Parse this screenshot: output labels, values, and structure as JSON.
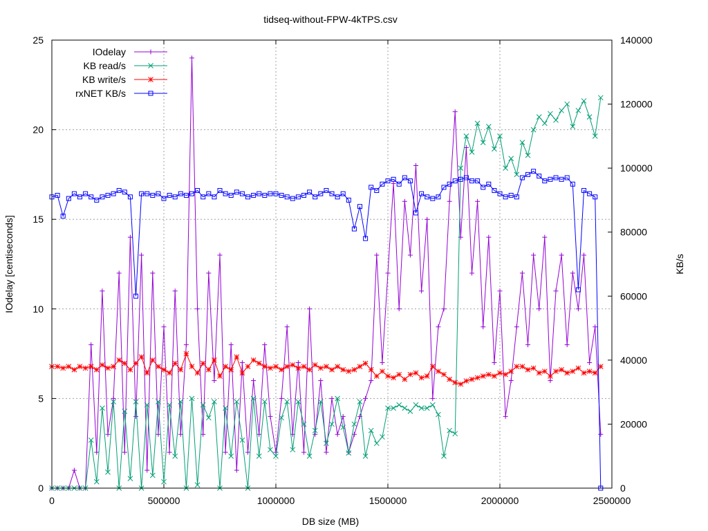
{
  "chart_data": {
    "type": "line",
    "title": "tidseq-without-FPW-4kTPS.csv",
    "xlabel": "DB size (MB)",
    "ylabel": "IOdelay [centiseconds]",
    "y2label": "KB/s",
    "xlim": [
      0,
      2500000
    ],
    "ylim": [
      0,
      25
    ],
    "y2lim": [
      0,
      140000
    ],
    "xticks": [
      "0",
      "500000",
      "1000000",
      "1500000",
      "2000000",
      "2500000"
    ],
    "yticks": [
      "0",
      "5",
      "10",
      "15",
      "20",
      "25"
    ],
    "y2ticks": [
      "0",
      "20000",
      "40000",
      "60000",
      "80000",
      "100000",
      "120000",
      "140000"
    ],
    "grid": true,
    "legend_position": "top-left",
    "x": [
      0,
      25000,
      50000,
      75000,
      100000,
      125000,
      150000,
      175000,
      200000,
      225000,
      250000,
      275000,
      300000,
      325000,
      350000,
      375000,
      400000,
      425000,
      450000,
      475000,
      500000,
      525000,
      550000,
      575000,
      600000,
      625000,
      650000,
      675000,
      700000,
      725000,
      750000,
      775000,
      800000,
      825000,
      850000,
      875000,
      900000,
      925000,
      950000,
      975000,
      1000000,
      1025000,
      1050000,
      1075000,
      1100000,
      1125000,
      1150000,
      1175000,
      1200000,
      1225000,
      1250000,
      1275000,
      1300000,
      1325000,
      1350000,
      1375000,
      1400000,
      1425000,
      1450000,
      1475000,
      1500000,
      1525000,
      1550000,
      1575000,
      1600000,
      1625000,
      1650000,
      1675000,
      1700000,
      1725000,
      1750000,
      1775000,
      1800000,
      1825000,
      1850000,
      1875000,
      1900000,
      1925000,
      1950000,
      1975000,
      2000000,
      2025000,
      2050000,
      2075000,
      2100000,
      2125000,
      2150000,
      2175000,
      2200000,
      2225000,
      2250000,
      2275000,
      2300000,
      2325000,
      2350000,
      2375000,
      2400000,
      2425000,
      2450000
    ],
    "series": [
      {
        "name": "IOdelay",
        "axis": "y",
        "color": "#9400d3",
        "marker": "plus",
        "values": [
          0,
          0,
          0,
          0,
          1,
          0,
          0,
          8,
          2,
          11,
          3,
          5,
          12,
          2,
          14,
          4,
          13,
          1,
          12,
          3,
          9,
          2,
          11,
          3,
          8,
          24,
          10,
          3,
          12,
          6,
          13,
          2,
          8,
          1,
          7,
          2,
          6,
          3,
          8,
          4,
          2,
          5,
          9,
          3,
          7,
          2,
          10,
          3,
          6,
          2,
          5,
          3,
          4,
          2,
          3,
          4,
          5,
          6,
          13,
          7,
          12,
          17,
          10,
          16,
          13,
          18,
          11,
          15,
          5,
          9,
          10,
          16,
          21,
          14,
          19,
          12,
          16,
          9,
          14,
          7,
          11,
          4,
          6,
          9,
          12,
          8,
          13,
          10,
          14,
          6,
          11,
          13,
          8,
          12,
          10,
          13,
          7,
          9,
          3
        ]
      },
      {
        "name": "KB read/s",
        "axis": "y2",
        "color": "#009e73",
        "marker": "cross",
        "values": [
          0,
          0,
          0,
          0,
          0,
          0,
          0,
          15000,
          2000,
          25000,
          5000,
          27000,
          0,
          24000,
          3000,
          27000,
          0,
          26000,
          4000,
          27000,
          2000,
          26000,
          10000,
          27000,
          0,
          28000,
          1000,
          26000,
          22000,
          27000,
          0,
          25000,
          10000,
          27000,
          15000,
          0,
          28000,
          10000,
          27000,
          12000,
          10000,
          22000,
          27000,
          12000,
          27000,
          20000,
          10000,
          18000,
          27000,
          14000,
          20000,
          28000,
          19000,
          11000,
          20000,
          27000,
          10000,
          18000,
          14000,
          16000,
          25000,
          25000,
          26000,
          25000,
          24000,
          26000,
          25000,
          25000,
          26000,
          23000,
          10000,
          18000,
          17000,
          100000,
          110000,
          105000,
          114000,
          108000,
          113000,
          106000,
          110000,
          100000,
          103000,
          98000,
          108000,
          104000,
          112000,
          116000,
          114000,
          117000,
          115000,
          118000,
          120000,
          113000,
          118000,
          121000,
          116000,
          110000,
          122000
        ]
      },
      {
        "name": "KB write/s",
        "axis": "y2",
        "color": "#ff0000",
        "marker": "star",
        "values": [
          38000,
          38000,
          37500,
          38000,
          37000,
          38000,
          37500,
          38000,
          37000,
          38500,
          37500,
          38000,
          40000,
          39000,
          37000,
          39000,
          41000,
          36000,
          40000,
          38000,
          37000,
          36000,
          39000,
          37000,
          42000,
          38000,
          36000,
          39000,
          37000,
          40000,
          35000,
          38000,
          37000,
          41000,
          36000,
          38000,
          40000,
          39000,
          38000,
          37500,
          38000,
          37000,
          38000,
          38500,
          37500,
          38000,
          37000,
          38500,
          37500,
          38000,
          37000,
          38000,
          37000,
          36500,
          37000,
          38000,
          39000,
          37000,
          35000,
          36500,
          35000,
          34500,
          35500,
          34000,
          35500,
          36000,
          34500,
          35000,
          38000,
          36500,
          35500,
          34000,
          33000,
          32500,
          33500,
          34000,
          34500,
          35000,
          35500,
          35000,
          36000,
          35500,
          36500,
          38000,
          38000,
          37000,
          37500,
          36000,
          36500,
          35000,
          36500,
          37000,
          36000,
          36500,
          37500,
          36000,
          36500,
          36000,
          38000
        ]
      },
      {
        "name": "rxNET KB/s",
        "axis": "y2",
        "color": "#0000ff",
        "marker": "square",
        "values": [
          91000,
          91500,
          85000,
          90500,
          92000,
          91000,
          92000,
          91000,
          90000,
          91000,
          91500,
          92000,
          93000,
          92500,
          91000,
          60000,
          92000,
          92000,
          91500,
          92000,
          90500,
          91500,
          91000,
          92000,
          91500,
          92000,
          93000,
          91000,
          92000,
          91000,
          93000,
          92000,
          91500,
          92500,
          92000,
          91000,
          91500,
          92000,
          91500,
          92000,
          92000,
          91500,
          91000,
          90500,
          91000,
          91500,
          92500,
          91000,
          92000,
          93000,
          92000,
          91000,
          92000,
          90000,
          81000,
          88000,
          78000,
          94000,
          93000,
          95000,
          96000,
          96500,
          95000,
          97000,
          96000,
          86000,
          92000,
          91000,
          90500,
          91000,
          94000,
          95000,
          96000,
          96500,
          97000,
          96000,
          96000,
          94000,
          95000,
          93000,
          92000,
          91000,
          91500,
          91000,
          97000,
          98000,
          99000,
          97500,
          96000,
          96500,
          97000,
          96500,
          97000,
          95000,
          62000,
          93000,
          92000,
          91000,
          0
        ]
      }
    ]
  }
}
